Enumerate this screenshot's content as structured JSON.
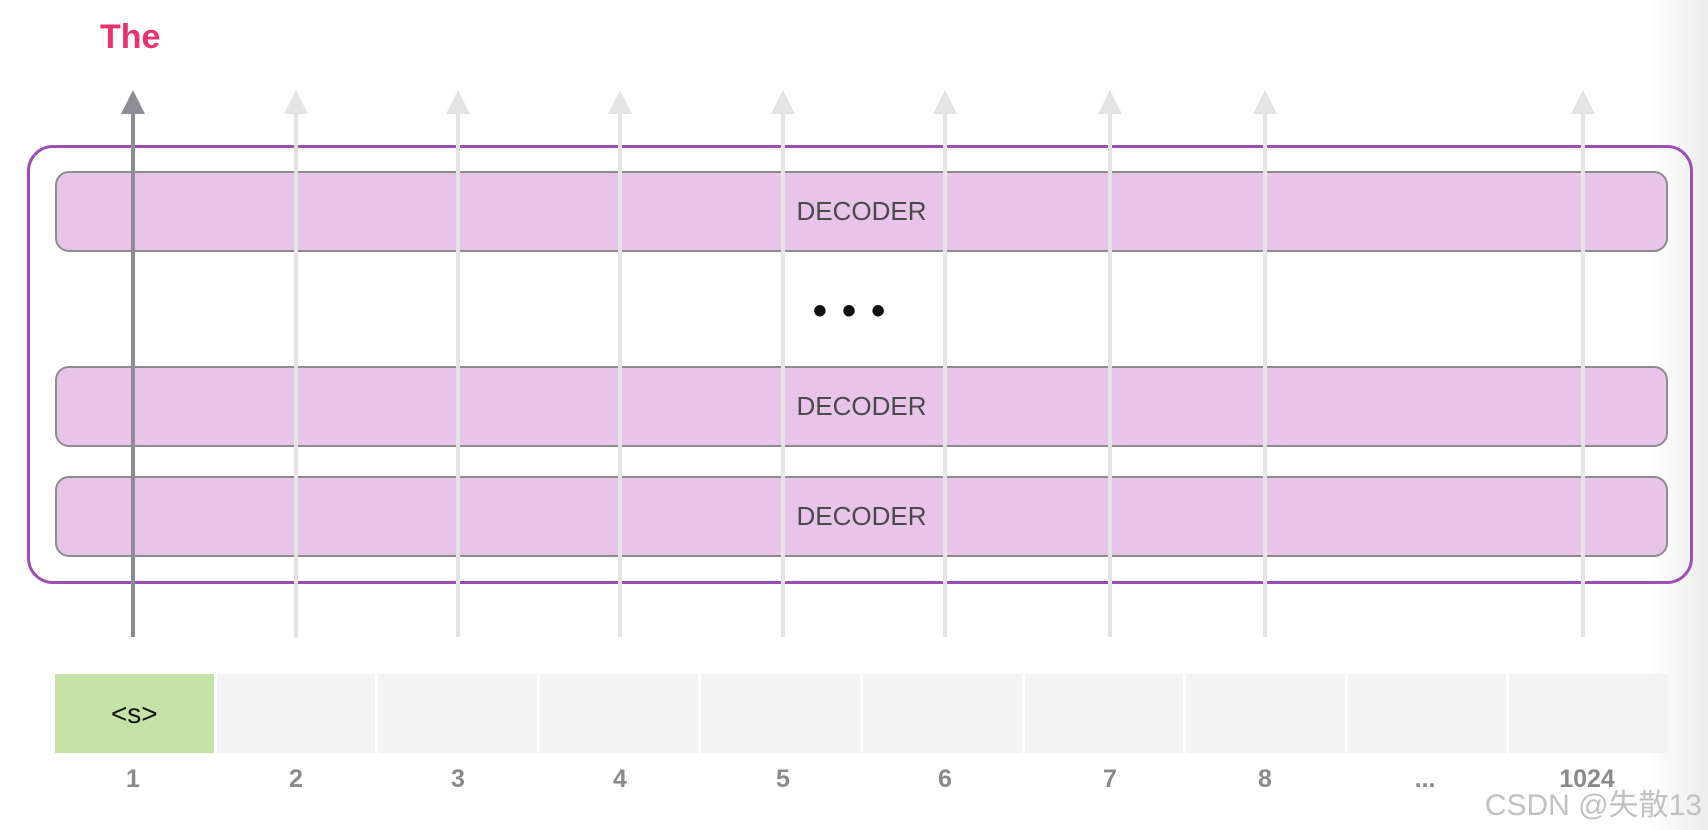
{
  "output_token": "The",
  "decoder_labels": [
    "DECODER",
    "DECODER",
    "DECODER"
  ],
  "ellipsis": "• • •",
  "input_tokens": [
    "<s>",
    "",
    "",
    "",
    "",
    "",
    "",
    "",
    "",
    ""
  ],
  "positions": [
    "1",
    "2",
    "3",
    "4",
    "5",
    "6",
    "7",
    "8",
    "...",
    "1024"
  ],
  "watermark": "CSDN @失散13",
  "colors": {
    "decoder_fill": "#e8c3ea",
    "stack_border": "#9b4fb5",
    "active_token": "#c6e3a7",
    "inactive_token": "#f3f3f3",
    "output_text": "#e8336e",
    "active_arrow": "#8e8c94",
    "inactive_arrow": "#e4e4e4"
  }
}
